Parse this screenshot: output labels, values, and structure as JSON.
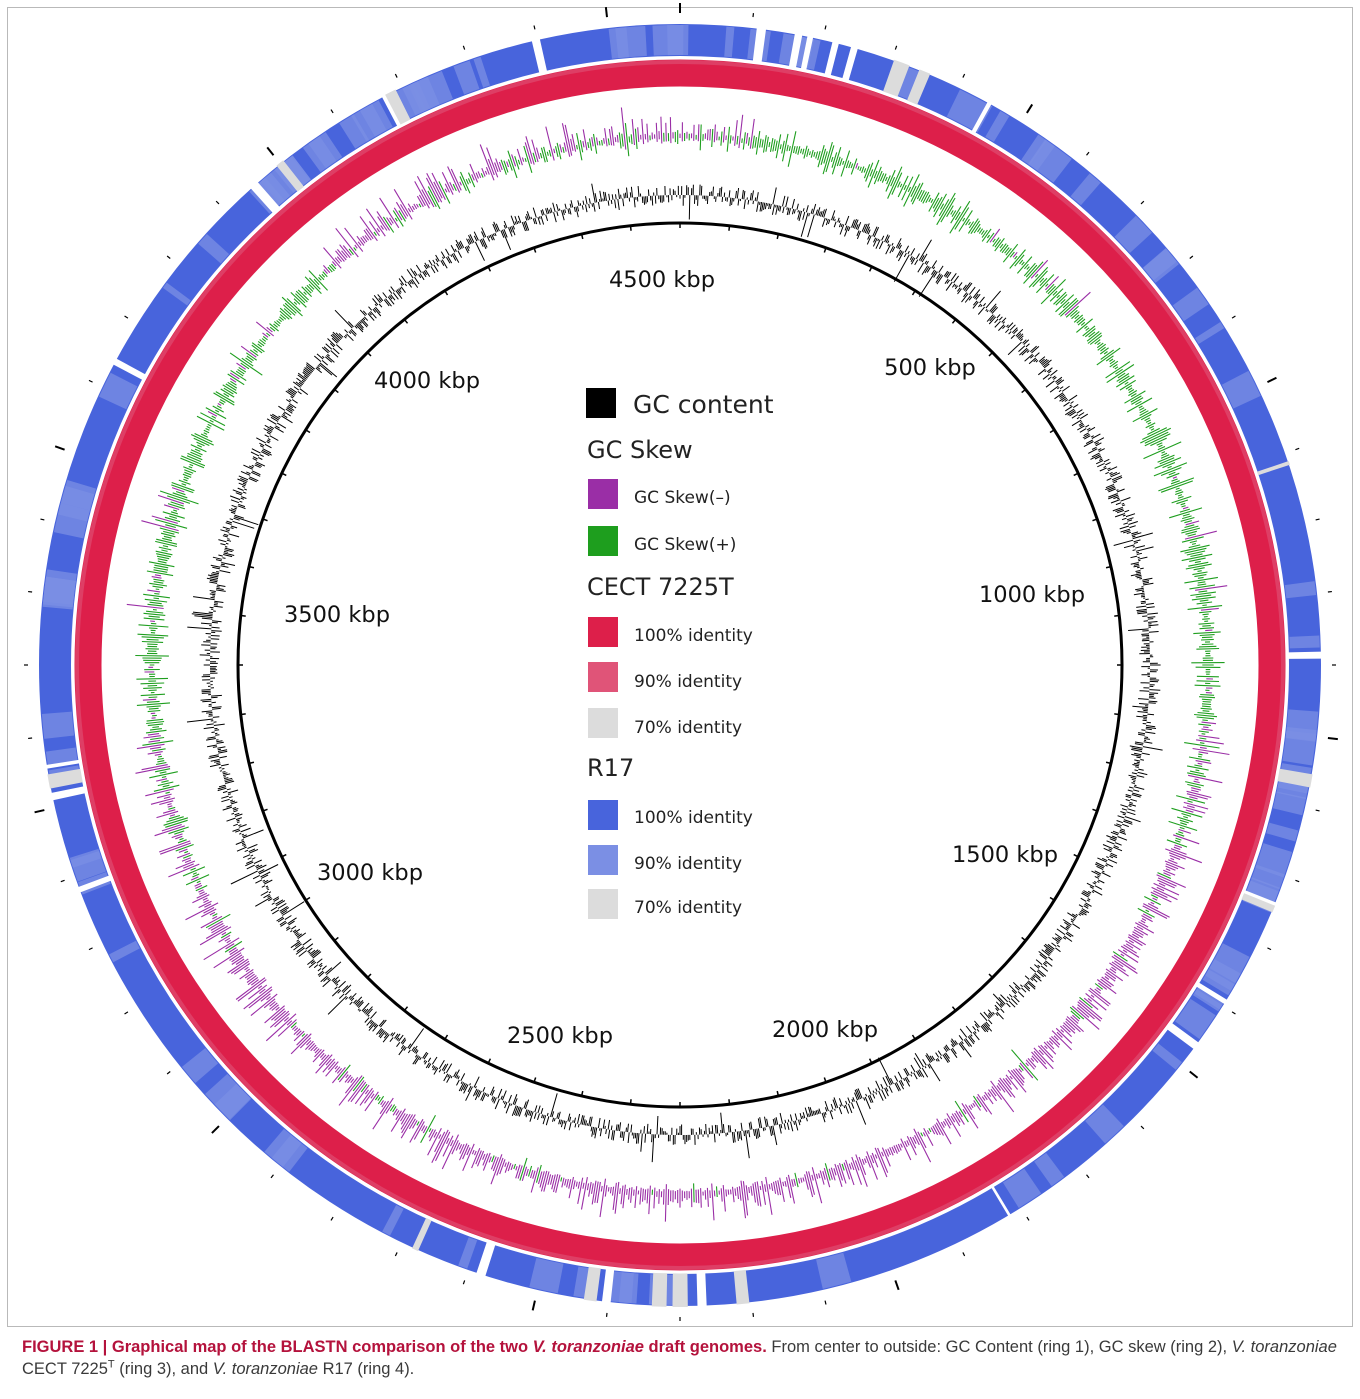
{
  "chart_data": {
    "type": "circular-genome-map",
    "position_labels": [
      "4500 kbp",
      "500 kbp",
      "1000 kbp",
      "1500 kbp",
      "2000 kbp",
      "2500 kbp",
      "3000 kbp",
      "3500 kbp",
      "4000 kbp"
    ],
    "legend": {
      "gc_content": "GC content",
      "gc_skew_heading": "GC Skew",
      "gc_skew_minus": "GC Skew(–)",
      "gc_skew_plus": "GC Skew(+)",
      "cect_heading": "CECT 7225T",
      "cect_100": "100% identity",
      "cect_90": "90% identity",
      "cect_70": "70% identity",
      "r17_heading": "R17",
      "r17_100": "100% identity",
      "r17_90": "90% identity",
      "r17_70": "70% identity"
    },
    "colors": {
      "gc_content": "#000000",
      "gc_skew_minus": "#9a2ea6",
      "gc_skew_plus": "#1e9e1e",
      "cect_100": "#dd1f4a",
      "cect_90": "#e05478",
      "r17_100": "#4864dc",
      "r17_90": "#7b8fe4",
      "identity_70": "#dcdcdc"
    }
  },
  "caption": {
    "figure_label": "FIGURE 1 | Graphical map of the BLASTN comparison of the two ",
    "species_title": "V. toranzoniae",
    "title_end": " draft genomes.",
    "text_1": " From center to outside: GC Content (ring 1), GC skew (ring 2), ",
    "species_1": "V. toranzoniae",
    "text_2": " CECT 7225",
    "superscript": "T",
    "text_3": " (ring 3), and ",
    "species_2": "V. toranzoniae",
    "text_4": " R17 (ring 4)."
  }
}
